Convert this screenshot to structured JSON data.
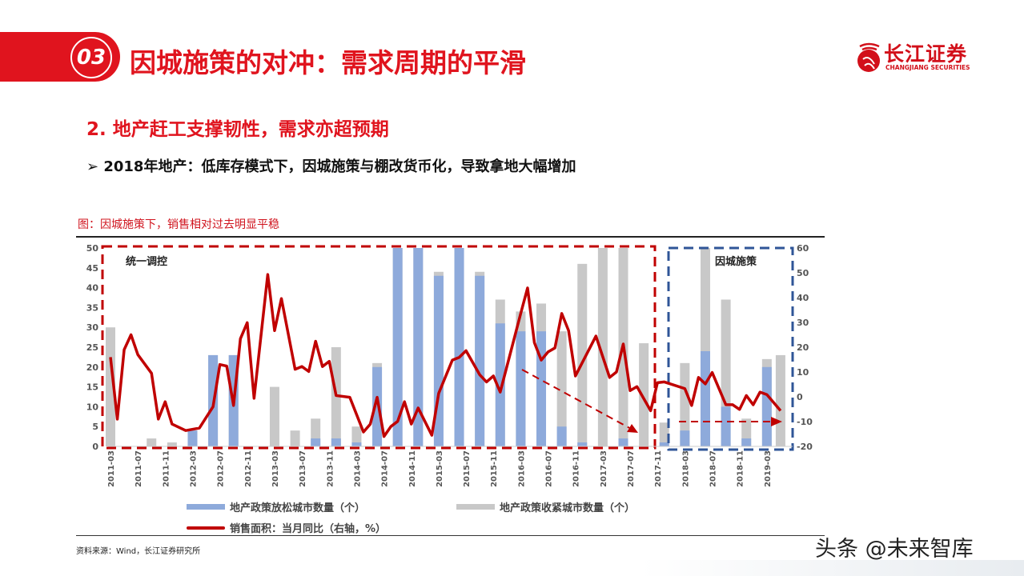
{
  "header": {
    "section_number": "03",
    "title": "因城施策的对冲：需求周期的平滑",
    "logo_cn": "长江证券",
    "logo_en": "CHANGJIANG SECURITIES"
  },
  "subtitle": "2. 地产赶工支撑韧性，需求亦超预期",
  "bullet": "2018年地产：低库存模式下，因城施策与棚改货币化，导致拿地大幅增加",
  "bullet_icon": "arrow-bullet-icon",
  "chart_caption": "图：因城施策下，销售相对过去明显平稳",
  "source": "资料来源：Wind，长江证券研究所",
  "watermark": "头条 @未来智库",
  "colors": {
    "accent": "#e0141e",
    "loosen": "#8eaadb",
    "tighten": "#c8c8c8",
    "line": "#c00000",
    "box_red": "#c00000",
    "box_blue": "#2f5597"
  },
  "chart_data": {
    "type": "bar+line",
    "region_labels": [
      "统一调控",
      "因城施策"
    ],
    "x_tick_labels": [
      "2011-03",
      "2011-07",
      "2011-11",
      "2012-03",
      "2012-07",
      "2012-11",
      "2013-03",
      "2013-07",
      "2013-11",
      "2014-03",
      "2014-07",
      "2014-11",
      "2015-03",
      "2015-07",
      "2015-11",
      "2016-03",
      "2016-07",
      "2016-11",
      "2017-03",
      "2017-07",
      "2017-11",
      "2018-03",
      "2018-07",
      "2018-11",
      "2019-03"
    ],
    "y_left": {
      "range": [
        0,
        50
      ],
      "ticks": [
        "0",
        "5",
        "10",
        "15",
        "20",
        "25",
        "30",
        "35",
        "40",
        "45",
        "50"
      ]
    },
    "y_right": {
      "range": [
        -20,
        60
      ],
      "ticks": [
        "-20",
        "-10",
        "0",
        "10",
        "20",
        "30",
        "40",
        "50",
        "60"
      ]
    },
    "grid": false,
    "legend_placement": "bottom",
    "series": [
      {
        "name": "地产政策放松城市数量（个）",
        "type": "bar",
        "axis": "left",
        "x": [
          "2011-03",
          "2011-06",
          "2011-09",
          "2011-12",
          "2012-03",
          "2012-06",
          "2012-09",
          "2012-12",
          "2013-03",
          "2013-06",
          "2013-09",
          "2013-12",
          "2014-03",
          "2014-06",
          "2014-09",
          "2014-12",
          "2015-03",
          "2015-06",
          "2015-09",
          "2015-12",
          "2016-03",
          "2016-06",
          "2016-09",
          "2016-12",
          "2017-03",
          "2017-06",
          "2017-09",
          "2017-12",
          "2018-03",
          "2018-06",
          "2018-09",
          "2018-12",
          "2019-03",
          "2019-05"
        ],
        "values": [
          0,
          0,
          0,
          0,
          4,
          23,
          23,
          0,
          0,
          0,
          2,
          2,
          1,
          20,
          50,
          50,
          43,
          50,
          43,
          31,
          29,
          29,
          5,
          1,
          0,
          2,
          0,
          1,
          4,
          24,
          10,
          2,
          20,
          0
        ]
      },
      {
        "name": "地产政策收紧城市数量（个）",
        "type": "bar",
        "axis": "left",
        "x": [
          "2011-03",
          "2011-06",
          "2011-09",
          "2011-12",
          "2012-03",
          "2012-06",
          "2012-09",
          "2012-12",
          "2013-03",
          "2013-06",
          "2013-09",
          "2013-12",
          "2014-03",
          "2014-06",
          "2014-09",
          "2014-12",
          "2015-03",
          "2015-06",
          "2015-09",
          "2015-12",
          "2016-03",
          "2016-06",
          "2016-09",
          "2016-12",
          "2017-03",
          "2017-06",
          "2017-09",
          "2017-12",
          "2018-03",
          "2018-06",
          "2018-09",
          "2018-12",
          "2019-03",
          "2019-05"
        ],
        "values": [
          30,
          0,
          2,
          1,
          4,
          23,
          23,
          0,
          15,
          4,
          7,
          25,
          5,
          21,
          50,
          50,
          44,
          50,
          44,
          37,
          34,
          36,
          29,
          46,
          50,
          50,
          26,
          6,
          21,
          50,
          37,
          7,
          22,
          23
        ]
      },
      {
        "name": "销售面积：当月同比（右轴，%）",
        "type": "line",
        "axis": "right",
        "x": [
          "2011-03",
          "2011-04",
          "2011-05",
          "2011-06",
          "2011-07",
          "2011-09",
          "2011-10",
          "2011-11",
          "2011-12",
          "2012-02",
          "2012-04",
          "2012-05",
          "2012-06",
          "2012-07",
          "2012-08",
          "2012-09",
          "2012-10",
          "2012-11",
          "2012-12",
          "2013-02",
          "2013-03",
          "2013-04",
          "2013-06",
          "2013-07",
          "2013-08",
          "2013-09",
          "2013-10",
          "2013-11",
          "2013-12",
          "2014-02",
          "2014-04",
          "2014-05",
          "2014-06",
          "2014-07",
          "2014-08",
          "2014-09",
          "2014-10",
          "2014-11",
          "2014-12",
          "2015-02",
          "2015-03",
          "2015-05",
          "2015-06",
          "2015-07",
          "2015-09",
          "2015-10",
          "2015-11",
          "2015-12",
          "2016-03",
          "2016-04",
          "2016-05",
          "2016-06",
          "2016-07",
          "2016-08",
          "2016-09",
          "2016-10",
          "2016-11",
          "2017-02",
          "2017-04",
          "2017-05",
          "2017-06",
          "2017-07",
          "2017-08",
          "2017-10",
          "2017-11",
          "2017-12",
          "2018-03",
          "2018-04",
          "2018-05",
          "2018-06",
          "2018-07",
          "2018-09",
          "2018-10",
          "2018-11",
          "2018-12",
          "2019-01",
          "2019-02",
          "2019-03",
          "2019-05"
        ],
        "values": [
          16,
          -9,
          19,
          25,
          17,
          9.5,
          -9,
          -2,
          -11,
          -13.6,
          -12.6,
          -8.3,
          -4,
          13,
          12.4,
          -3.5,
          23.4,
          29.9,
          -0.6,
          49.3,
          26.7,
          39.6,
          11.1,
          12.2,
          10.2,
          22.4,
          12.2,
          14.3,
          0.5,
          -0.2,
          -14.2,
          -11,
          -0.2,
          -16,
          -12,
          -9.9,
          -2,
          -11,
          -4.5,
          -15.5,
          1.4,
          14.8,
          15.9,
          18.6,
          8.9,
          6,
          8.4,
          1.9,
          33.6,
          43.9,
          21.8,
          14.8,
          18.1,
          19.7,
          33.6,
          26.7,
          8.4,
          24.5,
          7.8,
          10,
          21.3,
          2.5,
          4.1,
          -5.6,
          5.7,
          6,
          3.3,
          -3.5,
          7.8,
          5.2,
          9.8,
          -3.2,
          -3.2,
          -5.1,
          0.5,
          -3.2,
          1.9,
          0.9,
          -5.6
        ]
      }
    ]
  }
}
